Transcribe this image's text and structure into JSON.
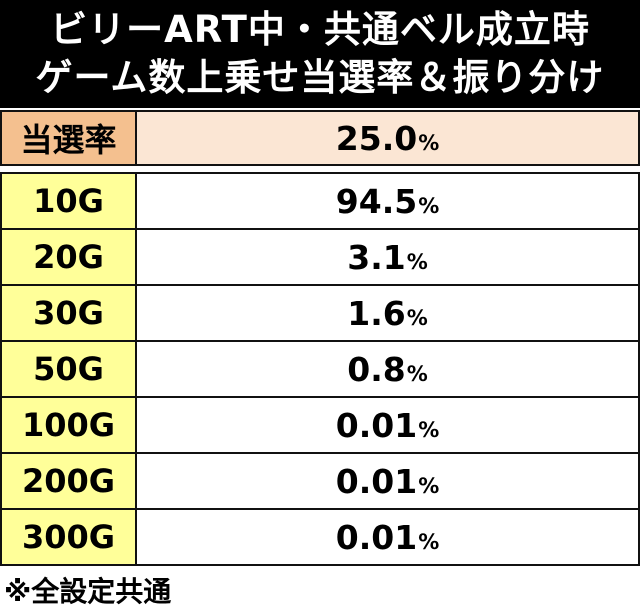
{
  "title": {
    "line1": "ビリーART中・共通ベル成立時",
    "line2": "ゲーム数上乗せ当選率＆振り分け"
  },
  "rate": {
    "label": "当選率",
    "value": "25.0",
    "unit": "%"
  },
  "distribution": [
    {
      "games": "10G",
      "value": "94.5",
      "unit": "%"
    },
    {
      "games": "20G",
      "value": "3.1",
      "unit": "%"
    },
    {
      "games": "30G",
      "value": "1.6",
      "unit": "%"
    },
    {
      "games": "50G",
      "value": "0.8",
      "unit": "%"
    },
    {
      "games": "100G",
      "value": "0.01",
      "unit": "%"
    },
    {
      "games": "200G",
      "value": "0.01",
      "unit": "%"
    },
    {
      "games": "300G",
      "value": "0.01",
      "unit": "%"
    }
  ],
  "note": "※全設定共通"
}
